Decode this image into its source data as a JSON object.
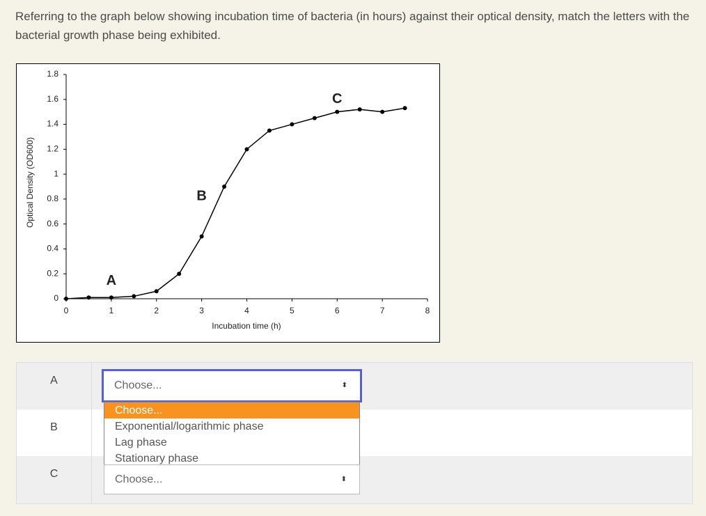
{
  "question": "Referring to the graph below showing incubation time of bacteria (in hours) against their optical density, match the letters with the bacterial growth phase being exhibited.",
  "chart_data": {
    "type": "line",
    "x_label": "Incubation time (h)",
    "y_label": "Optical Density (OD600)",
    "x": [
      0,
      0.5,
      1,
      1.5,
      2,
      2.5,
      3,
      3.5,
      4,
      4.5,
      5,
      5.5,
      6,
      6.5,
      7,
      7.5
    ],
    "series": [
      {
        "color": "#000000",
        "values": [
          0,
          0.01,
          0.01,
          0.02,
          0.06,
          0.2,
          0.5,
          0.9,
          1.2,
          1.35,
          1.4,
          1.45,
          1.5,
          1.52,
          1.5,
          1.53
        ]
      }
    ],
    "xlim": [
      0,
      8
    ],
    "xticks": [
      0,
      1,
      2,
      3,
      4,
      5,
      6,
      7,
      8
    ],
    "ylim": [
      0,
      1.8
    ],
    "yticks": [
      0,
      0.2,
      0.4,
      0.6,
      0.8,
      1,
      1.2,
      1.4,
      1.6,
      1.8
    ],
    "annotations": [
      {
        "text": "A",
        "x": 1,
        "y": 0.14
      },
      {
        "text": "B",
        "x": 3,
        "y": 0.82
      },
      {
        "text": "C",
        "x": 6,
        "y": 1.6
      }
    ]
  },
  "rows": [
    {
      "label": "A",
      "selected": "Choose..."
    },
    {
      "label": "B"
    },
    {
      "label": "C",
      "selected": "Choose..."
    }
  ],
  "dropdown_options": [
    "Choose...",
    "Exponential/logarithmic phase",
    "Lag phase",
    "Stationary phase"
  ]
}
